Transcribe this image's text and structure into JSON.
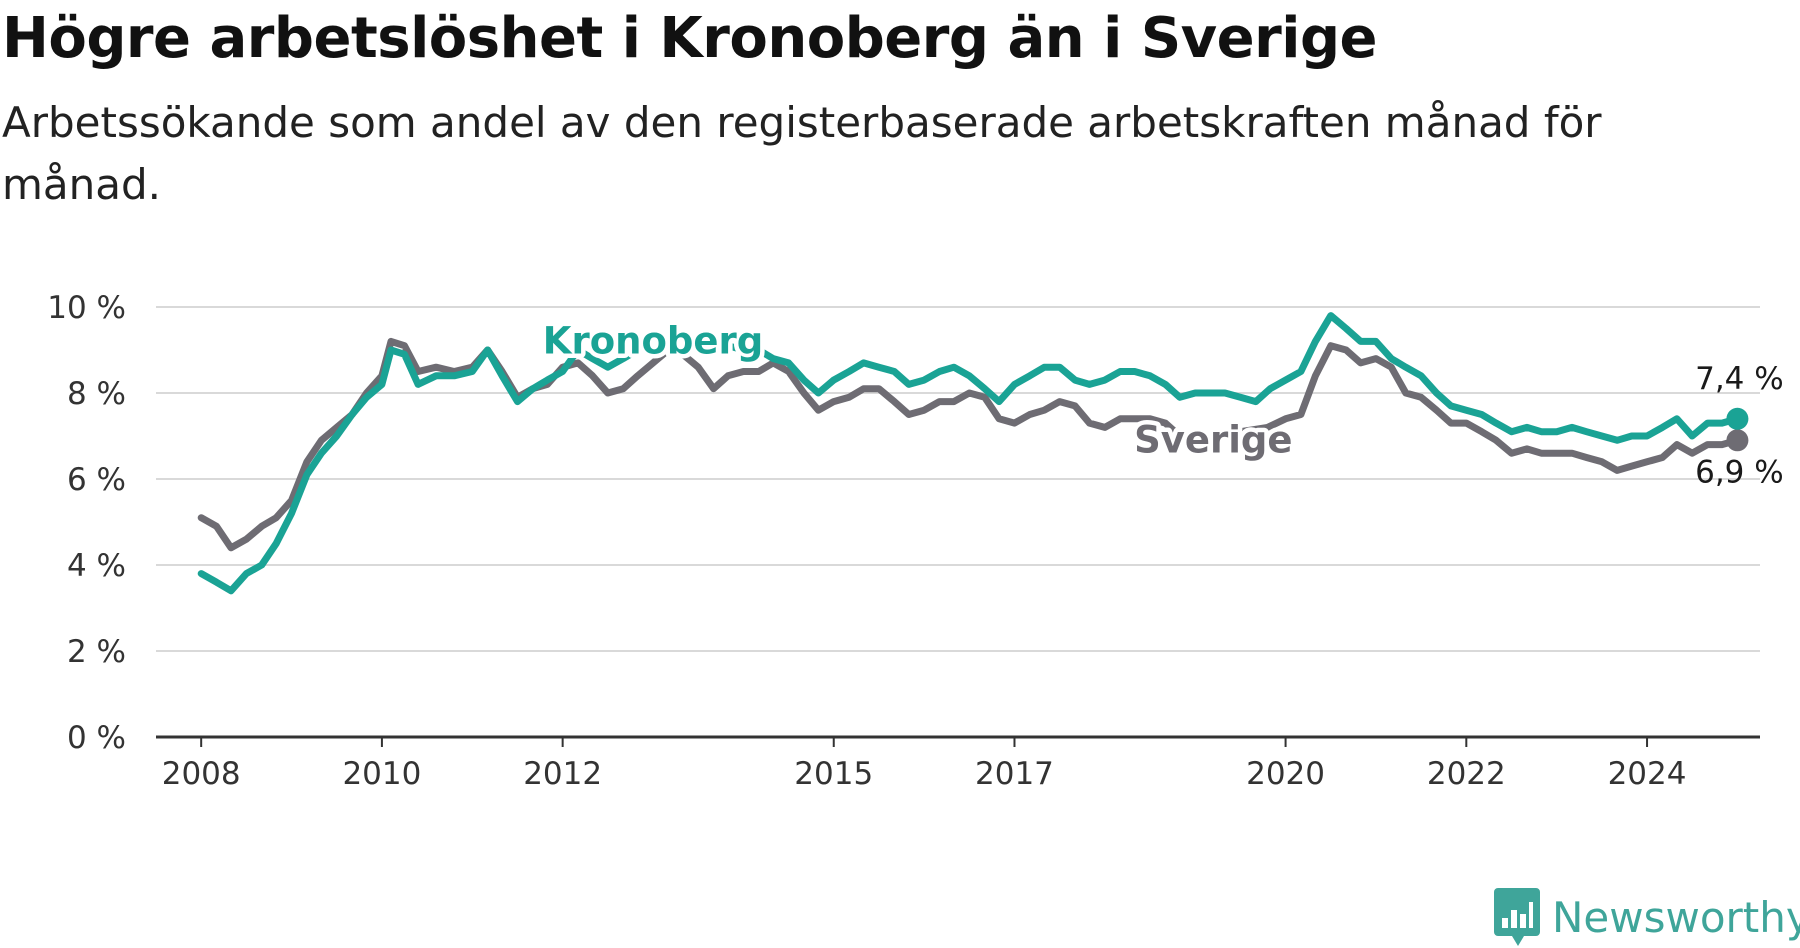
{
  "title": "Högre arbetslöshet i Kronoberg än i Sverige",
  "subtitle": "Arbetssökande som andel av den registerbaserade arbetskraften månad för månad.",
  "brand": {
    "name": "Newsworthy",
    "color": "#3fa59a",
    "icon": "bar-chart-logo-icon"
  },
  "chart_data": {
    "type": "line",
    "x_ticks": [
      "2008",
      "2010",
      "2012",
      "2015",
      "2017",
      "2020",
      "2022",
      "2024"
    ],
    "y_ticks": [
      "0 %",
      "2 %",
      "4 %",
      "6 %",
      "8 %",
      "10 %"
    ],
    "ylim": [
      0,
      10
    ],
    "xlim": [
      2007.5,
      2025.25
    ],
    "ylabel": "",
    "xlabel": "",
    "grid": "horizontal",
    "series": [
      {
        "name": "Sverige",
        "color": "#6e6c73",
        "end_label": "6,9 %",
        "points": [
          [
            2008.0,
            5.1
          ],
          [
            2008.17,
            4.9
          ],
          [
            2008.33,
            4.4
          ],
          [
            2008.5,
            4.6
          ],
          [
            2008.67,
            4.9
          ],
          [
            2008.83,
            5.1
          ],
          [
            2009.0,
            5.5
          ],
          [
            2009.17,
            6.4
          ],
          [
            2009.33,
            6.9
          ],
          [
            2009.5,
            7.2
          ],
          [
            2009.67,
            7.5
          ],
          [
            2009.83,
            8.0
          ],
          [
            2010.0,
            8.4
          ],
          [
            2010.1,
            9.2
          ],
          [
            2010.25,
            9.1
          ],
          [
            2010.4,
            8.5
          ],
          [
            2010.6,
            8.6
          ],
          [
            2010.8,
            8.5
          ],
          [
            2011.0,
            8.6
          ],
          [
            2011.17,
            9.0
          ],
          [
            2011.33,
            8.5
          ],
          [
            2011.5,
            7.9
          ],
          [
            2011.67,
            8.1
          ],
          [
            2011.83,
            8.2
          ],
          [
            2012.0,
            8.6
          ],
          [
            2012.17,
            8.7
          ],
          [
            2012.33,
            8.4
          ],
          [
            2012.5,
            8.0
          ],
          [
            2012.67,
            8.1
          ],
          [
            2012.83,
            8.4
          ],
          [
            2013.0,
            8.7
          ],
          [
            2013.17,
            9.0
          ],
          [
            2013.33,
            8.9
          ],
          [
            2013.5,
            8.6
          ],
          [
            2013.67,
            8.1
          ],
          [
            2013.83,
            8.4
          ],
          [
            2014.0,
            8.5
          ],
          [
            2014.17,
            8.5
          ],
          [
            2014.33,
            8.7
          ],
          [
            2014.5,
            8.5
          ],
          [
            2014.67,
            8.0
          ],
          [
            2014.83,
            7.6
          ],
          [
            2015.0,
            7.8
          ],
          [
            2015.17,
            7.9
          ],
          [
            2015.33,
            8.1
          ],
          [
            2015.5,
            8.1
          ],
          [
            2015.67,
            7.8
          ],
          [
            2015.83,
            7.5
          ],
          [
            2016.0,
            7.6
          ],
          [
            2016.17,
            7.8
          ],
          [
            2016.33,
            7.8
          ],
          [
            2016.5,
            8.0
          ],
          [
            2016.67,
            7.9
          ],
          [
            2016.83,
            7.4
          ],
          [
            2017.0,
            7.3
          ],
          [
            2017.17,
            7.5
          ],
          [
            2017.33,
            7.6
          ],
          [
            2017.5,
            7.8
          ],
          [
            2017.67,
            7.7
          ],
          [
            2017.83,
            7.3
          ],
          [
            2018.0,
            7.2
          ],
          [
            2018.17,
            7.4
          ],
          [
            2018.33,
            7.4
          ],
          [
            2018.5,
            7.4
          ],
          [
            2018.67,
            7.3
          ],
          [
            2018.83,
            7.0
          ],
          [
            2019.0,
            6.9
          ],
          [
            2019.2,
            7.0
          ],
          [
            2019.5,
            7.1
          ],
          [
            2019.8,
            7.2
          ],
          [
            2020.0,
            7.4
          ],
          [
            2020.17,
            7.5
          ],
          [
            2020.33,
            8.4
          ],
          [
            2020.5,
            9.1
          ],
          [
            2020.67,
            9.0
          ],
          [
            2020.83,
            8.7
          ],
          [
            2021.0,
            8.8
          ],
          [
            2021.17,
            8.6
          ],
          [
            2021.33,
            8.0
          ],
          [
            2021.5,
            7.9
          ],
          [
            2021.67,
            7.6
          ],
          [
            2021.83,
            7.3
          ],
          [
            2022.0,
            7.3
          ],
          [
            2022.17,
            7.1
          ],
          [
            2022.33,
            6.9
          ],
          [
            2022.5,
            6.6
          ],
          [
            2022.67,
            6.7
          ],
          [
            2022.83,
            6.6
          ],
          [
            2023.0,
            6.6
          ],
          [
            2023.17,
            6.6
          ],
          [
            2023.33,
            6.5
          ],
          [
            2023.5,
            6.4
          ],
          [
            2023.67,
            6.2
          ],
          [
            2023.83,
            6.3
          ],
          [
            2024.0,
            6.4
          ],
          [
            2024.17,
            6.5
          ],
          [
            2024.33,
            6.8
          ],
          [
            2024.5,
            6.6
          ],
          [
            2024.67,
            6.8
          ],
          [
            2024.83,
            6.8
          ],
          [
            2025.0,
            6.9
          ]
        ]
      },
      {
        "name": "Kronoberg",
        "color": "#1aa395",
        "end_label": "7,4 %",
        "points": [
          [
            2008.0,
            3.8
          ],
          [
            2008.17,
            3.6
          ],
          [
            2008.33,
            3.4
          ],
          [
            2008.5,
            3.8
          ],
          [
            2008.67,
            4.0
          ],
          [
            2008.83,
            4.5
          ],
          [
            2009.0,
            5.2
          ],
          [
            2009.17,
            6.1
          ],
          [
            2009.33,
            6.6
          ],
          [
            2009.5,
            7.0
          ],
          [
            2009.67,
            7.5
          ],
          [
            2009.83,
            7.9
          ],
          [
            2010.0,
            8.2
          ],
          [
            2010.1,
            9.0
          ],
          [
            2010.25,
            8.9
          ],
          [
            2010.4,
            8.2
          ],
          [
            2010.6,
            8.4
          ],
          [
            2010.8,
            8.4
          ],
          [
            2011.0,
            8.5
          ],
          [
            2011.17,
            9.0
          ],
          [
            2011.33,
            8.4
          ],
          [
            2011.5,
            7.8
          ],
          [
            2011.67,
            8.1
          ],
          [
            2011.83,
            8.3
          ],
          [
            2012.0,
            8.5
          ],
          [
            2012.17,
            9.0
          ],
          [
            2012.33,
            8.8
          ],
          [
            2012.5,
            8.6
          ],
          [
            2012.67,
            8.8
          ],
          [
            2012.83,
            9.0
          ],
          [
            2013.0,
            9.2
          ],
          [
            2013.17,
            9.3
          ],
          [
            2013.33,
            9.0
          ],
          [
            2013.5,
            9.1
          ],
          [
            2013.67,
            9.2
          ],
          [
            2013.83,
            9.1
          ],
          [
            2014.0,
            9.0
          ],
          [
            2014.17,
            9.0
          ],
          [
            2014.33,
            8.8
          ],
          [
            2014.5,
            8.7
          ],
          [
            2014.67,
            8.3
          ],
          [
            2014.83,
            8.0
          ],
          [
            2015.0,
            8.3
          ],
          [
            2015.17,
            8.5
          ],
          [
            2015.33,
            8.7
          ],
          [
            2015.5,
            8.6
          ],
          [
            2015.67,
            8.5
          ],
          [
            2015.83,
            8.2
          ],
          [
            2016.0,
            8.3
          ],
          [
            2016.17,
            8.5
          ],
          [
            2016.33,
            8.6
          ],
          [
            2016.5,
            8.4
          ],
          [
            2016.67,
            8.1
          ],
          [
            2016.83,
            7.8
          ],
          [
            2017.0,
            8.2
          ],
          [
            2017.17,
            8.4
          ],
          [
            2017.33,
            8.6
          ],
          [
            2017.5,
            8.6
          ],
          [
            2017.67,
            8.3
          ],
          [
            2017.83,
            8.2
          ],
          [
            2018.0,
            8.3
          ],
          [
            2018.17,
            8.5
          ],
          [
            2018.33,
            8.5
          ],
          [
            2018.5,
            8.4
          ],
          [
            2018.67,
            8.2
          ],
          [
            2018.83,
            7.9
          ],
          [
            2019.0,
            8.0
          ],
          [
            2019.17,
            8.0
          ],
          [
            2019.33,
            8.0
          ],
          [
            2019.5,
            7.9
          ],
          [
            2019.67,
            7.8
          ],
          [
            2019.83,
            8.1
          ],
          [
            2020.0,
            8.3
          ],
          [
            2020.17,
            8.5
          ],
          [
            2020.33,
            9.2
          ],
          [
            2020.5,
            9.8
          ],
          [
            2020.67,
            9.5
          ],
          [
            2020.83,
            9.2
          ],
          [
            2021.0,
            9.2
          ],
          [
            2021.17,
            8.8
          ],
          [
            2021.33,
            8.6
          ],
          [
            2021.5,
            8.4
          ],
          [
            2021.67,
            8.0
          ],
          [
            2021.83,
            7.7
          ],
          [
            2022.0,
            7.6
          ],
          [
            2022.17,
            7.5
          ],
          [
            2022.33,
            7.3
          ],
          [
            2022.5,
            7.1
          ],
          [
            2022.67,
            7.2
          ],
          [
            2022.83,
            7.1
          ],
          [
            2023.0,
            7.1
          ],
          [
            2023.17,
            7.2
          ],
          [
            2023.33,
            7.1
          ],
          [
            2023.5,
            7.0
          ],
          [
            2023.67,
            6.9
          ],
          [
            2023.83,
            7.0
          ],
          [
            2024.0,
            7.0
          ],
          [
            2024.17,
            7.2
          ],
          [
            2024.33,
            7.4
          ],
          [
            2024.5,
            7.0
          ],
          [
            2024.67,
            7.3
          ],
          [
            2024.83,
            7.3
          ],
          [
            2025.0,
            7.4
          ]
        ]
      }
    ]
  }
}
